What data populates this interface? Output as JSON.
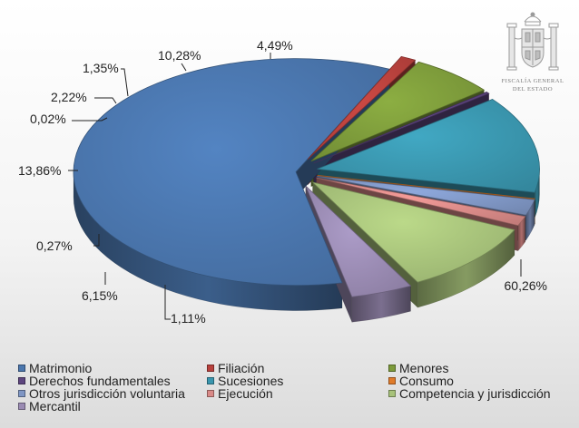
{
  "header": {
    "seal_line1": "FISCALÍA GENERAL",
    "seal_line2": "DEL ESTADO"
  },
  "chart_data": {
    "type": "pie",
    "title": "",
    "series": [
      {
        "name": "Matrimonio",
        "value": 60.26,
        "label": "60,26%",
        "color": "#4a76ad"
      },
      {
        "name": "Filiación",
        "value": 1.11,
        "label": "1,11%",
        "color": "#b8413d"
      },
      {
        "name": "Menores",
        "value": 6.15,
        "label": "6,15%",
        "color": "#7d9b3b"
      },
      {
        "name": "Derechos fundamentales",
        "value": 0.27,
        "label": "0,27%",
        "color": "#5d457f"
      },
      {
        "name": "Sucesiones",
        "value": 13.86,
        "label": "13,86%",
        "color": "#3a96ae"
      },
      {
        "name": "Consumo",
        "value": 0.02,
        "label": "0,02%",
        "color": "#e07c2b"
      },
      {
        "name": "Otros jurisdicción voluntaria",
        "value": 2.22,
        "label": "2,22%",
        "color": "#7f96c4"
      },
      {
        "name": "Ejecución",
        "value": 1.35,
        "label": "1,35%",
        "color": "#d98a88"
      },
      {
        "name": "Competencia y jurisdicción",
        "value": 10.28,
        "label": "10,28%",
        "color": "#a7c27a"
      },
      {
        "name": "Mercantil",
        "value": 4.49,
        "label": "4,49%",
        "color": "#9a8bb3"
      }
    ],
    "legend_position": "bottom",
    "exploded": true,
    "three_d": true
  }
}
